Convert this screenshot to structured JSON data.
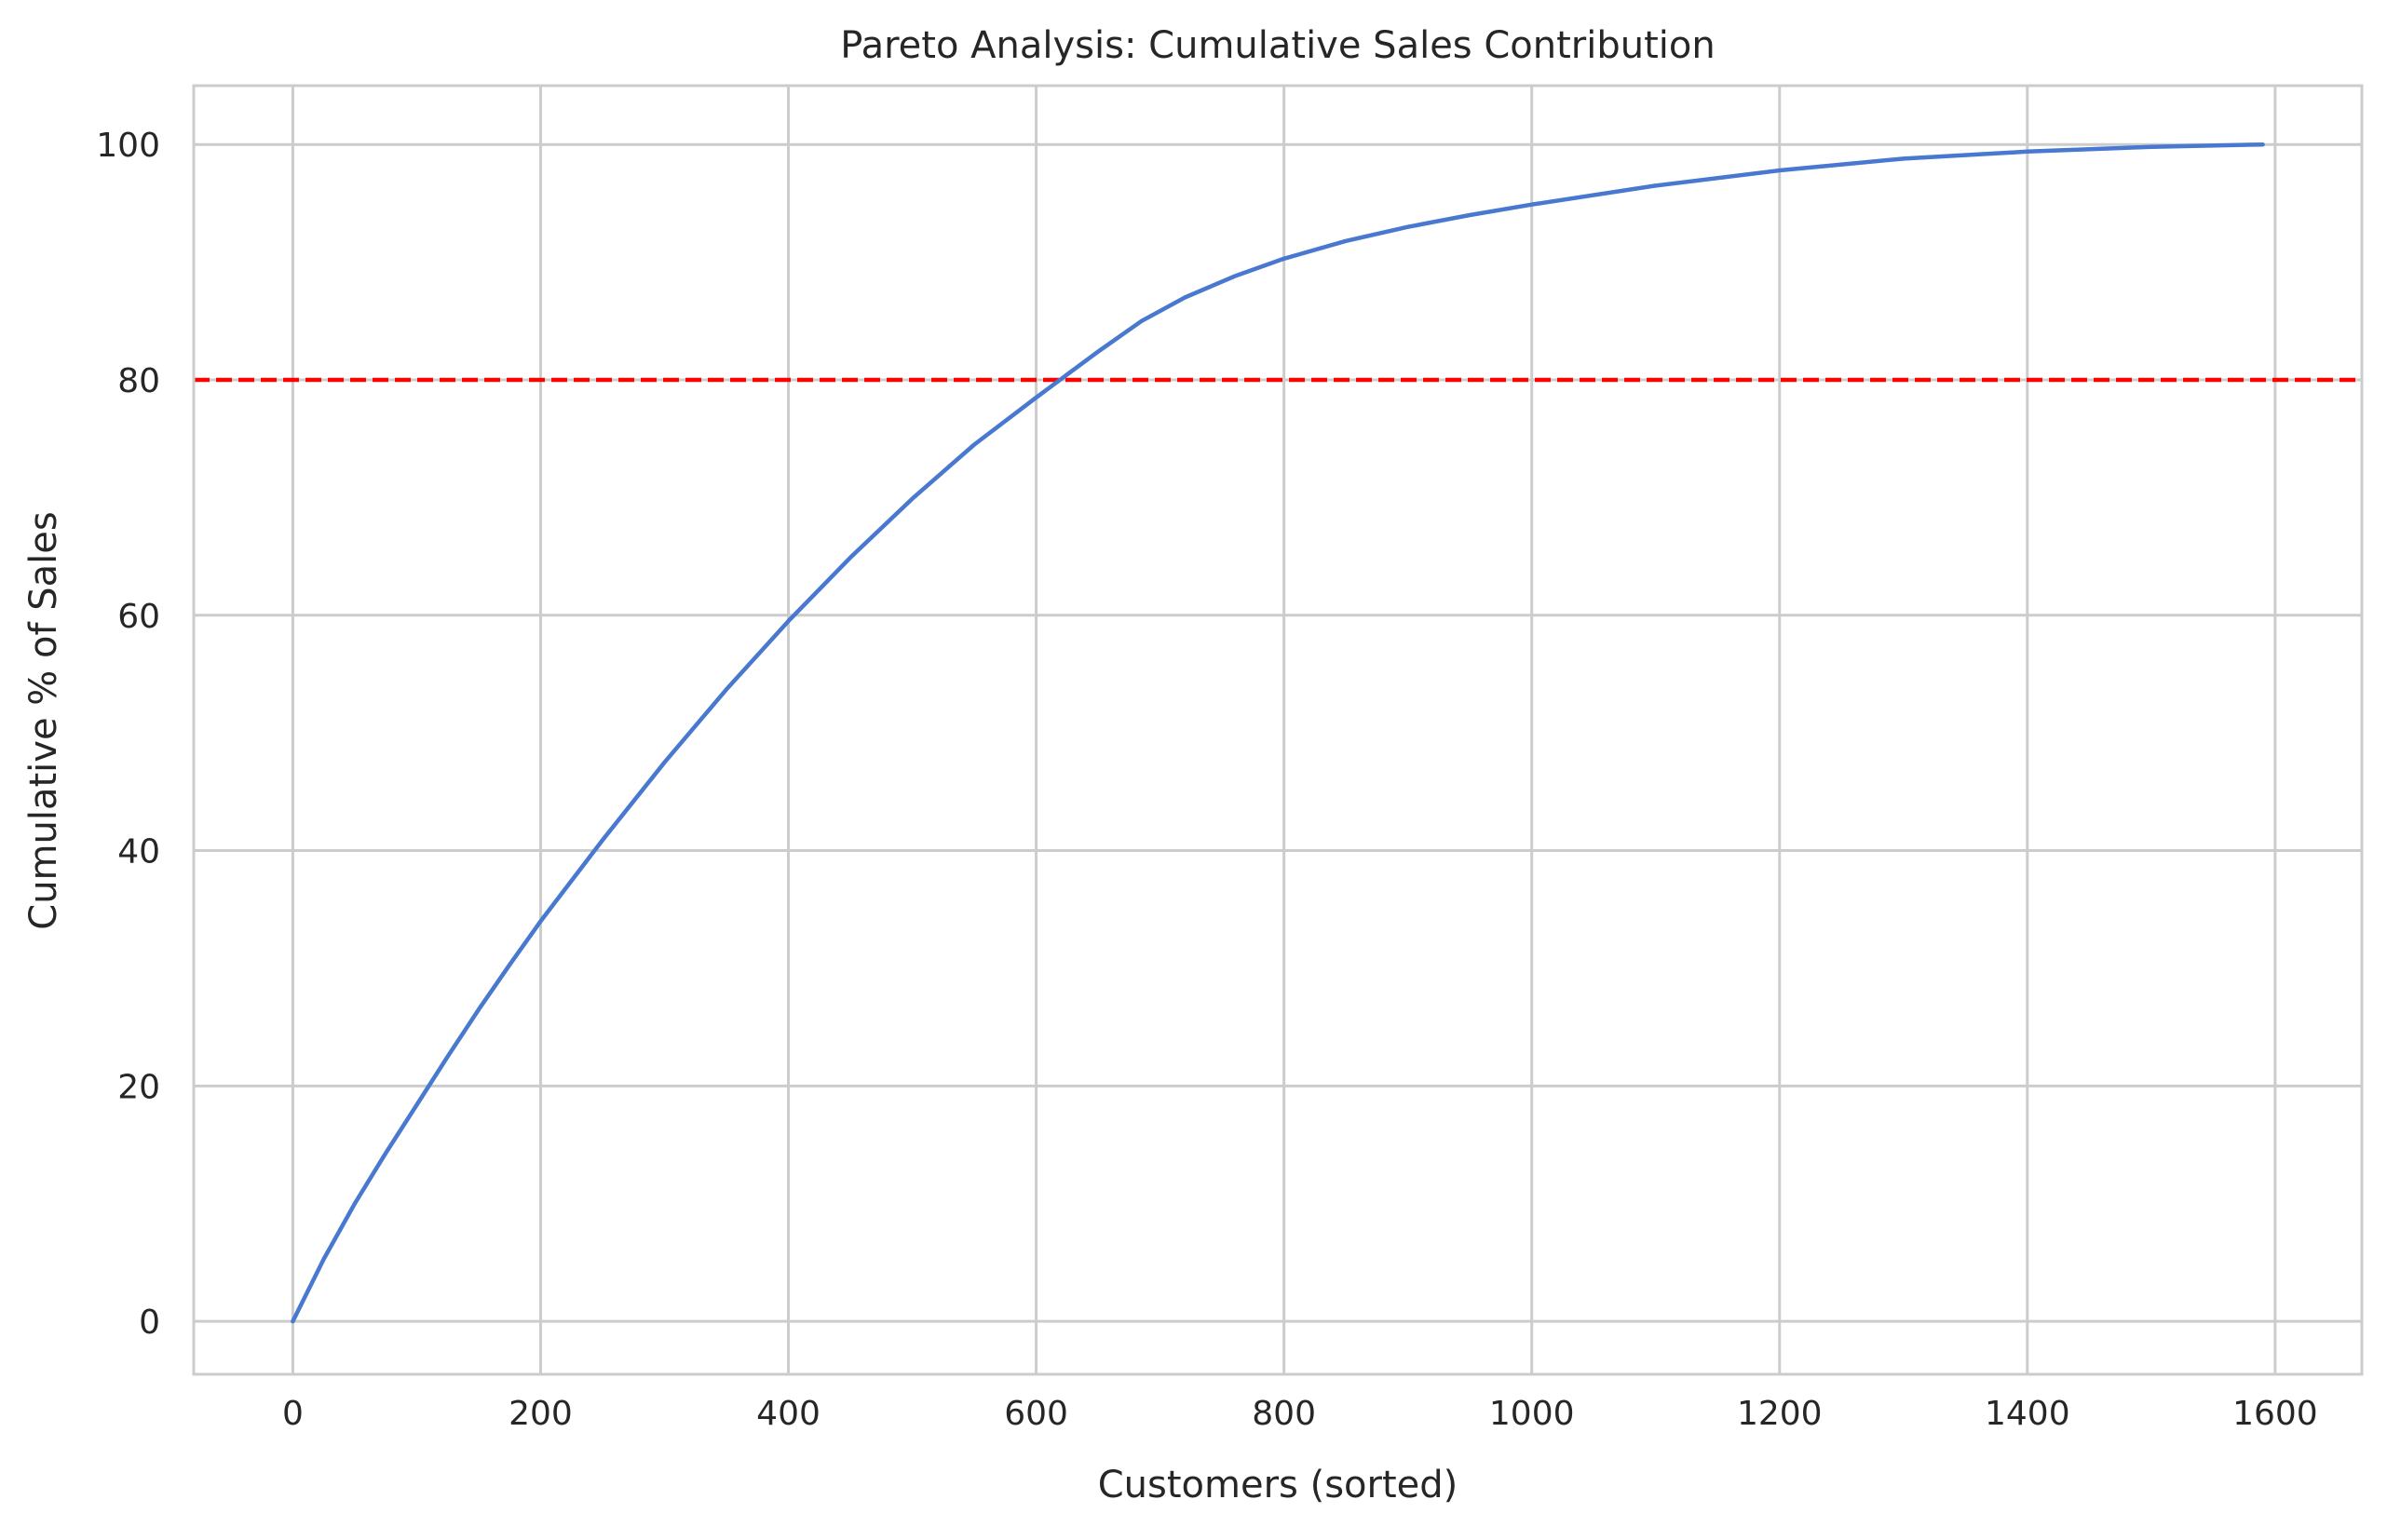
{
  "chart_data": {
    "type": "line",
    "title": "Pareto Analysis: Cumulative Sales Contribution",
    "xlabel": "Customers (sorted)",
    "ylabel": "Cumulative % of Sales",
    "xlim": [
      -80,
      1670
    ],
    "ylim": [
      -4.5,
      105
    ],
    "xticks": [
      0,
      200,
      400,
      600,
      800,
      1000,
      1200,
      1400,
      1600
    ],
    "yticks": [
      0,
      20,
      40,
      60,
      80,
      100
    ],
    "grid": true,
    "series": [
      {
        "color": "#4878d0",
        "x": [
          0,
          25,
          50,
          75,
          100,
          125,
          150,
          175,
          200,
          250,
          300,
          350,
          400,
          450,
          500,
          550,
          600,
          650,
          685,
          720,
          760,
          800,
          850,
          900,
          950,
          1000,
          1100,
          1200,
          1300,
          1400,
          1500,
          1590
        ],
        "y": [
          0,
          5.3,
          10.0,
          14.3,
          18.4,
          22.5,
          26.5,
          30.3,
          34.0,
          40.9,
          47.5,
          53.7,
          59.5,
          64.9,
          69.9,
          74.5,
          78.5,
          82.4,
          85.0,
          87.0,
          88.8,
          90.3,
          91.8,
          93.0,
          94.0,
          94.9,
          96.5,
          97.8,
          98.8,
          99.4,
          99.8,
          100.0
        ]
      }
    ],
    "reference_line": {
      "y": 80,
      "color": "#ff0000",
      "style": "dashed"
    }
  }
}
